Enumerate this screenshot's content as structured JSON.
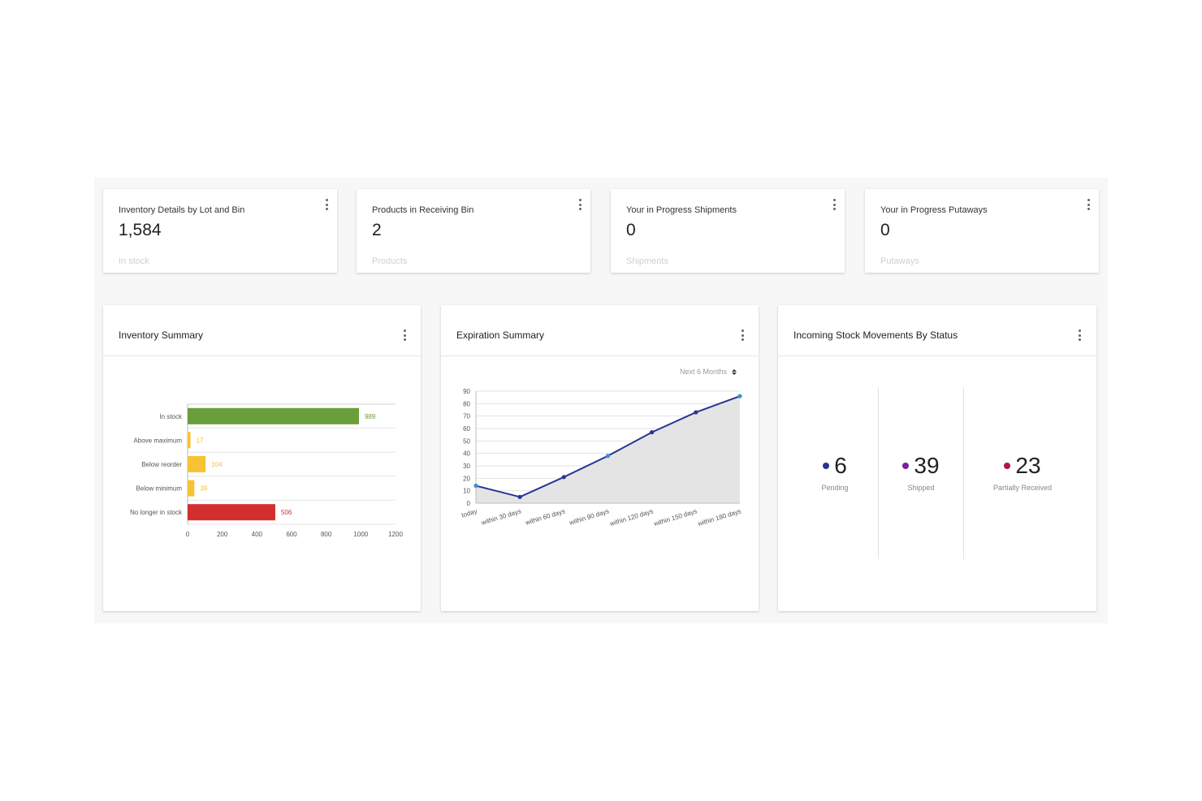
{
  "number_cards": [
    {
      "title": "Inventory Details by Lot and Bin",
      "value": "1,584",
      "subtitle": "In stock"
    },
    {
      "title": "Products in Receiving Bin",
      "value": "2",
      "subtitle": "Products"
    },
    {
      "title": "Your in Progress Shipments",
      "value": "0",
      "subtitle": "Shipments"
    },
    {
      "title": "Your in Progress Putaways",
      "value": "0",
      "subtitle": "Putaways"
    }
  ],
  "inventory_summary": {
    "title": "Inventory Summary"
  },
  "expiration_summary": {
    "title": "Expiration Summary",
    "period_select": "Next 6 Months"
  },
  "incoming_stock": {
    "title": "Incoming Stock Movements By Status",
    "statuses": [
      {
        "value": "6",
        "label": "Pending",
        "color": "#283593"
      },
      {
        "value": "39",
        "label": "Shipped",
        "color": "#7b1fa2"
      },
      {
        "value": "23",
        "label": "Partially Received",
        "color": "#ad1457"
      }
    ]
  },
  "chart_data": [
    {
      "type": "bar",
      "orientation": "horizontal",
      "categories": [
        "In stock",
        "Above maximum",
        "Below reorder",
        "Below minimum",
        "No longer in stock"
      ],
      "values": [
        989,
        17,
        104,
        39,
        506
      ],
      "colors": [
        "#6a9e3a",
        "#f7c233",
        "#f7c233",
        "#f7c233",
        "#d32f2f"
      ],
      "data_label_colors": [
        "#6a9e3a",
        "#f7c233",
        "#f7c233",
        "#f7c233",
        "#d32f2f"
      ],
      "xlim": [
        0,
        1200
      ],
      "xticks": [
        "0",
        "200",
        "400",
        "600",
        "800",
        "1000",
        "1200"
      ],
      "grid": true
    },
    {
      "type": "line",
      "fill": "area",
      "categories": [
        "today",
        "within 30 days",
        "within 60 days",
        "within 90 days",
        "within 120 days",
        "within 150 days",
        "within 180 days"
      ],
      "values": [
        14,
        5,
        21,
        38,
        57,
        73,
        86
      ],
      "line_color": "#283593",
      "area_color": "#e4e4e4",
      "ylim": [
        0,
        90
      ],
      "yticks": [
        "0",
        "10",
        "20",
        "30",
        "40",
        "50",
        "60",
        "70",
        "80",
        "90"
      ],
      "grid": true
    }
  ]
}
